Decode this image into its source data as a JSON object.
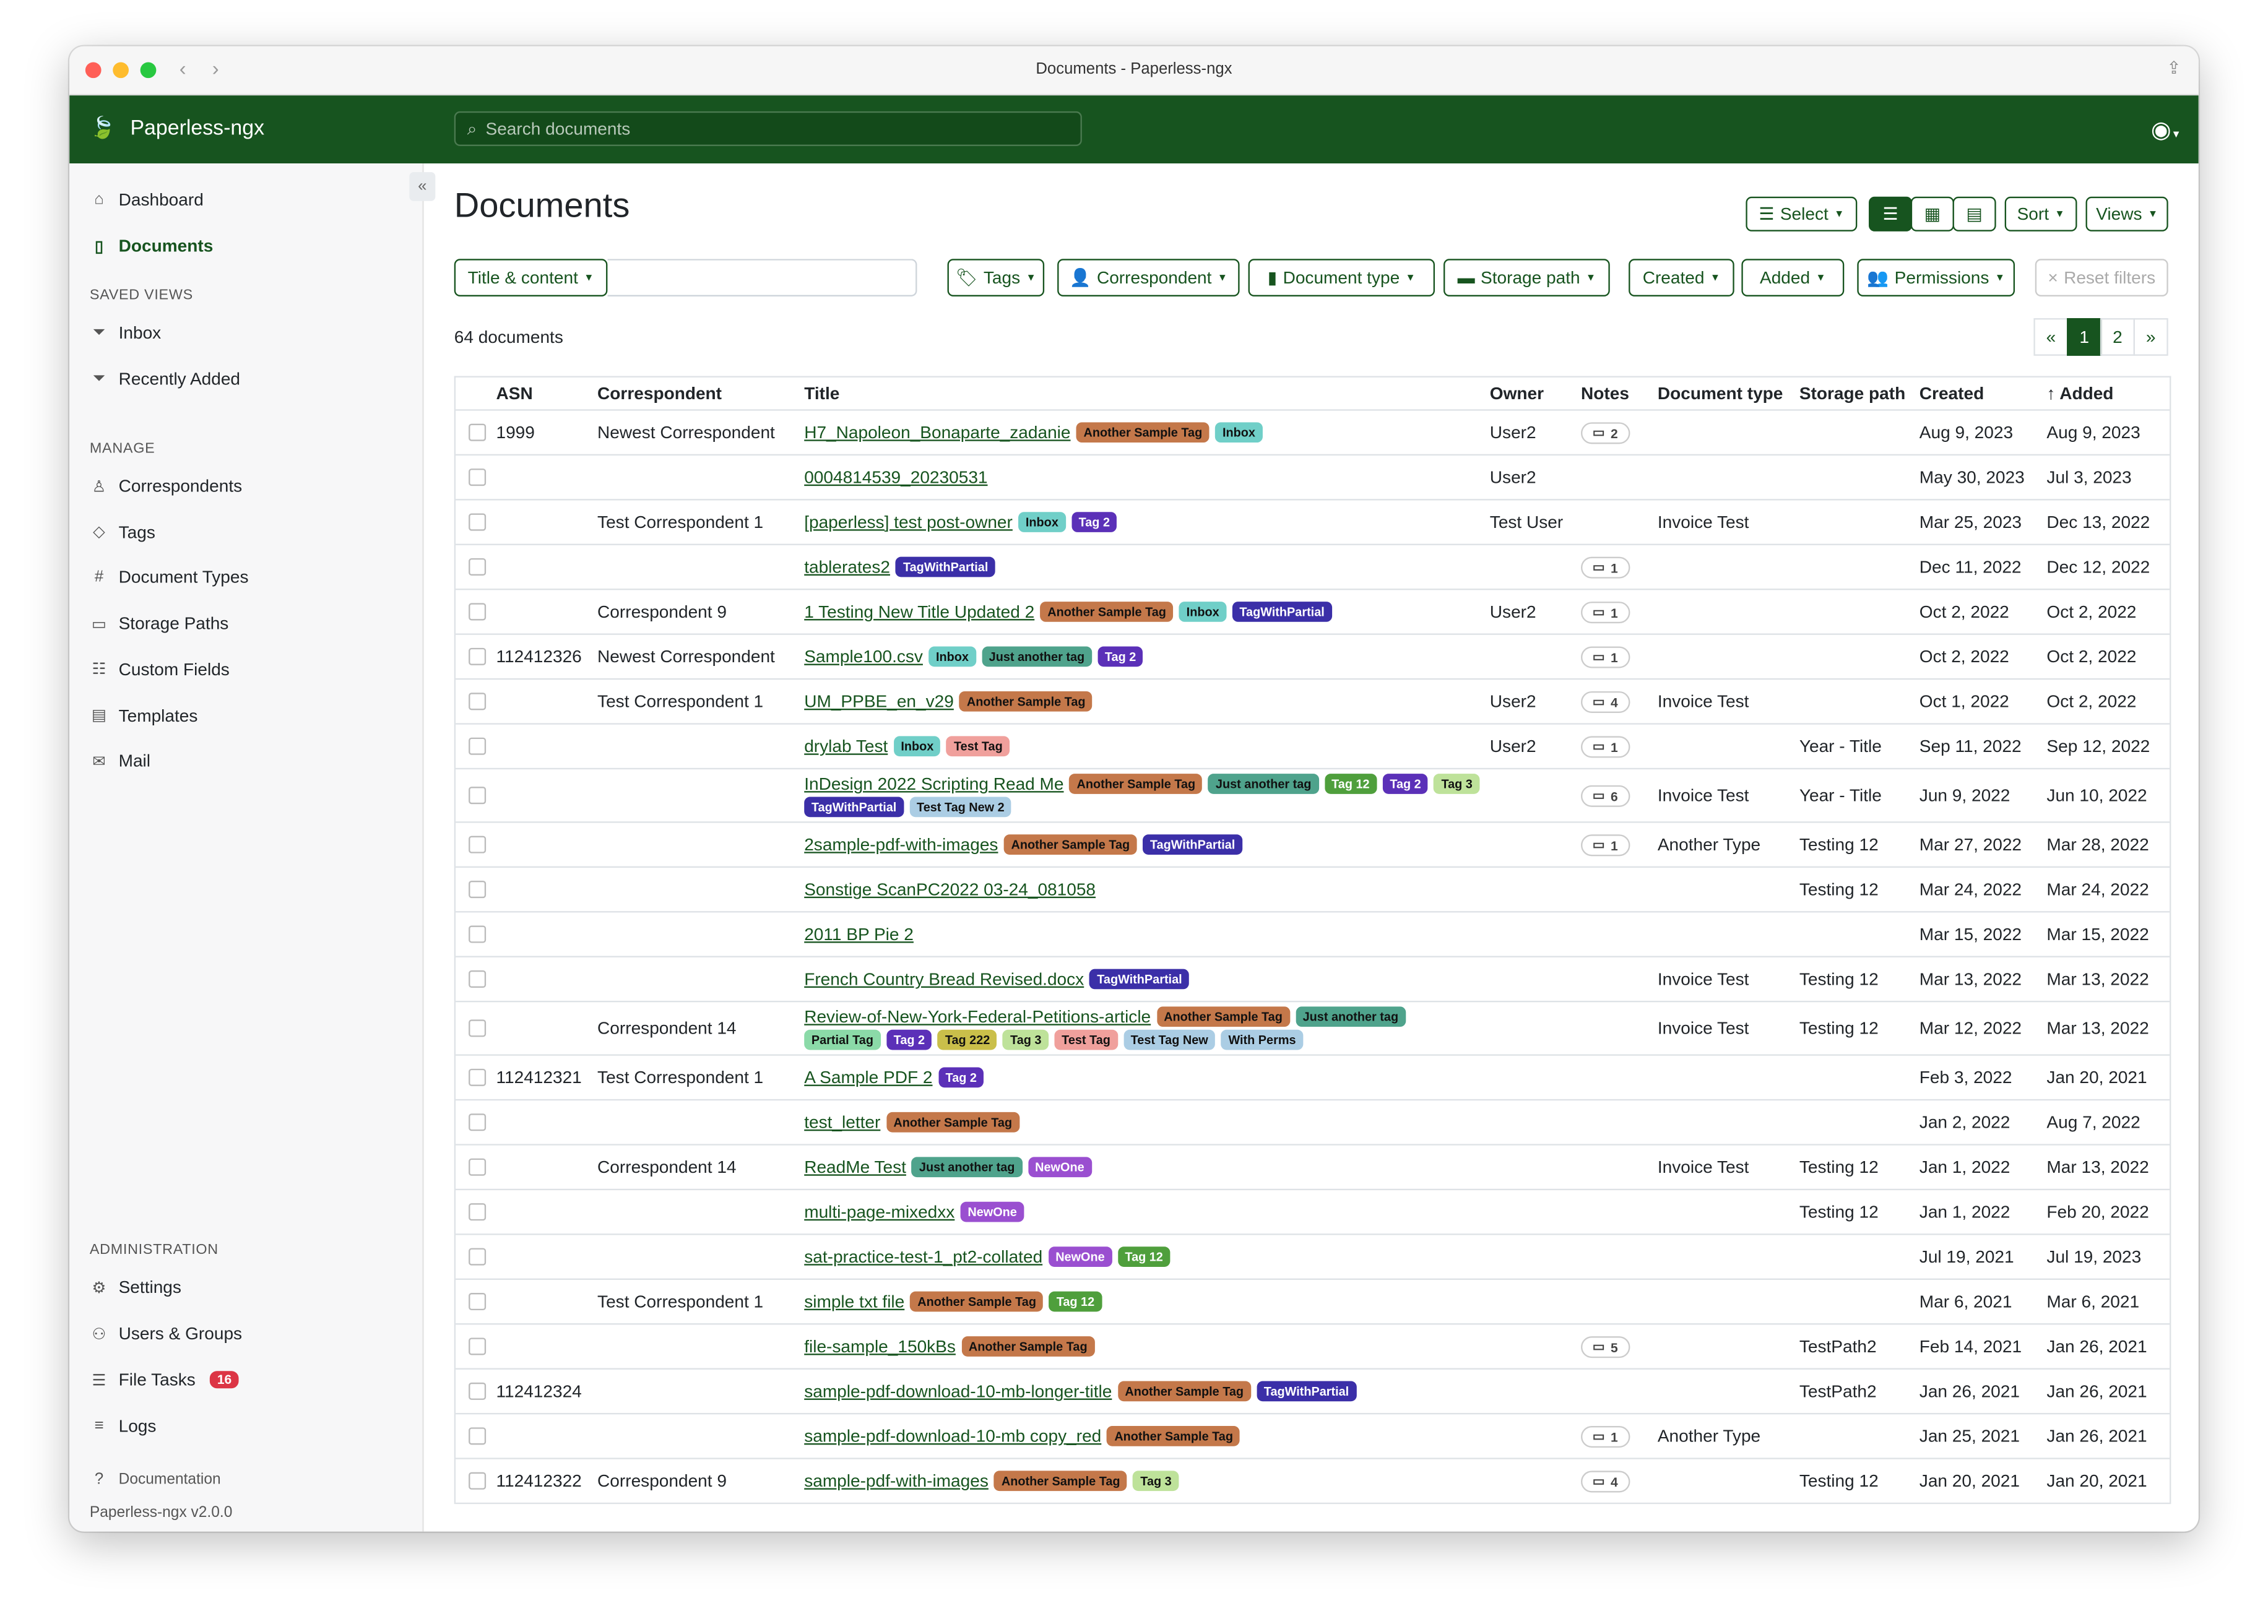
{
  "window": {
    "title": "Documents - Paperless-ngx"
  },
  "navbar": {
    "brand": "Paperless-ngx",
    "search_placeholder": "Search documents"
  },
  "sidebar": {
    "items_top": [
      {
        "label": "Dashboard",
        "icon": "house-icon"
      },
      {
        "label": "Documents",
        "icon": "file-icon",
        "active": true
      }
    ],
    "saved_views_heading": "SAVED VIEWS",
    "saved_views": [
      {
        "label": "Inbox",
        "icon": "funnel-icon"
      },
      {
        "label": "Recently Added",
        "icon": "funnel-icon"
      }
    ],
    "manage_heading": "MANAGE",
    "manage": [
      {
        "label": "Correspondents",
        "icon": "person-icon"
      },
      {
        "label": "Tags",
        "icon": "tag-icon"
      },
      {
        "label": "Document Types",
        "icon": "hash-icon"
      },
      {
        "label": "Storage Paths",
        "icon": "folder-icon"
      },
      {
        "label": "Custom Fields",
        "icon": "ui-radios-icon"
      },
      {
        "label": "Templates",
        "icon": "file-text-icon"
      },
      {
        "label": "Mail",
        "icon": "envelope-icon"
      }
    ],
    "admin_heading": "ADMINISTRATION",
    "admin": [
      {
        "label": "Settings",
        "icon": "gear-icon"
      },
      {
        "label": "Users & Groups",
        "icon": "people-icon"
      },
      {
        "label": "File Tasks",
        "icon": "list-icon",
        "badge": "16"
      },
      {
        "label": "Logs",
        "icon": "text-lines-icon"
      }
    ],
    "documentation": "Documentation",
    "version": "Paperless-ngx v2.0.0"
  },
  "main": {
    "title": "Documents",
    "select_label": "Select",
    "sort_label": "Sort",
    "views_label": "Views",
    "filters": {
      "title_content": "Title & content",
      "tags": "Tags",
      "correspondent": "Correspondent",
      "document_type": "Document type",
      "storage_path": "Storage path",
      "created": "Created",
      "added": "Added",
      "permissions": "Permissions",
      "reset": "Reset filters"
    },
    "count": "64 documents",
    "pager": [
      "«",
      "1",
      "2",
      "»"
    ],
    "columns": [
      "ASN",
      "Correspondent",
      "Title",
      "Owner",
      "Notes",
      "Document type",
      "Storage path",
      "Created",
      "Added"
    ]
  },
  "tag_colors": {
    "Another Sample Tag": [
      "#c4784a",
      "#111"
    ],
    "Inbox": [
      "#70cfc8",
      "#111"
    ],
    "Tag 2": [
      "#5b30b8",
      "#fff"
    ],
    "TagWithPartial": [
      "#3b2fa8",
      "#fff"
    ],
    "Just another tag": [
      "#4fa38c",
      "#111"
    ],
    "Tag 12": [
      "#4f9f3c",
      "#fff"
    ],
    "Tag 3": [
      "#bee29a",
      "#111"
    ],
    "Test Tag": [
      "#f0a09c",
      "#111"
    ],
    "Test Tag New 2": [
      "#abcde4",
      "#111"
    ],
    "Test Tag New": [
      "#abcde4",
      "#111"
    ],
    "With Perms": [
      "#abcde4",
      "#111"
    ],
    "Partial Tag": [
      "#8bdaa8",
      "#111"
    ],
    "Tag 222": [
      "#cabf4a",
      "#111"
    ],
    "NewOne": [
      "#9a4fd0",
      "#fff"
    ]
  },
  "rows": [
    {
      "asn": "1999",
      "corr": "Newest Correspondent",
      "title": "H7_Napoleon_Bonaparte_zadanie",
      "tags": [
        "Another Sample Tag",
        "Inbox"
      ],
      "owner": "User2",
      "notes": "2",
      "type": "",
      "path": "",
      "created": "Aug 9, 2023",
      "added": "Aug 9, 2023"
    },
    {
      "asn": "",
      "corr": "",
      "title": "0004814539_20230531",
      "tags": [],
      "owner": "User2",
      "notes": "",
      "type": "",
      "path": "",
      "created": "May 30, 2023",
      "added": "Jul 3, 2023"
    },
    {
      "asn": "",
      "corr": "Test Correspondent 1",
      "title": "[paperless] test post-owner",
      "tags": [
        "Inbox",
        "Tag 2"
      ],
      "owner": "Test User",
      "notes": "",
      "type": "Invoice Test",
      "path": "",
      "created": "Mar 25, 2023",
      "added": "Dec 13, 2022"
    },
    {
      "asn": "",
      "corr": "",
      "title": "tablerates2",
      "tags": [
        "TagWithPartial"
      ],
      "owner": "",
      "notes": "1",
      "type": "",
      "path": "",
      "created": "Dec 11, 2022",
      "added": "Dec 12, 2022"
    },
    {
      "asn": "",
      "corr": "Correspondent 9",
      "title": "1 Testing New Title Updated 2",
      "tags": [
        "Another Sample Tag",
        "Inbox",
        "TagWithPartial"
      ],
      "owner": "User2",
      "notes": "1",
      "type": "",
      "path": "",
      "created": "Oct 2, 2022",
      "added": "Oct 2, 2022"
    },
    {
      "asn": "112412326",
      "corr": "Newest Correspondent",
      "title": "Sample100.csv",
      "tags": [
        "Inbox",
        "Just another tag",
        "Tag 2"
      ],
      "owner": "",
      "notes": "1",
      "type": "",
      "path": "",
      "created": "Oct 2, 2022",
      "added": "Oct 2, 2022"
    },
    {
      "asn": "",
      "corr": "Test Correspondent 1",
      "title": "UM_PPBE_en_v29",
      "tags": [
        "Another Sample Tag"
      ],
      "owner": "User2",
      "notes": "4",
      "type": "Invoice Test",
      "path": "",
      "created": "Oct 1, 2022",
      "added": "Oct 2, 2022"
    },
    {
      "asn": "",
      "corr": "",
      "title": "drylab Test",
      "tags": [
        "Inbox",
        "Test Tag"
      ],
      "owner": "User2",
      "notes": "1",
      "type": "",
      "path": "Year - Title",
      "created": "Sep 11, 2022",
      "added": "Sep 12, 2022"
    },
    {
      "asn": "",
      "corr": "",
      "title": "InDesign 2022 Scripting Read Me",
      "tags": [
        "Another Sample Tag",
        "Just another tag",
        "Tag 12",
        "Tag 2",
        "Tag 3",
        "TagWithPartial",
        "Test Tag New 2"
      ],
      "owner": "",
      "notes": "6",
      "type": "Invoice Test",
      "path": "Year - Title",
      "created": "Jun 9, 2022",
      "added": "Jun 10, 2022"
    },
    {
      "asn": "",
      "corr": "",
      "title": "2sample-pdf-with-images",
      "tags": [
        "Another Sample Tag",
        "TagWithPartial"
      ],
      "owner": "",
      "notes": "1",
      "type": "Another Type",
      "path": "Testing 12",
      "created": "Mar 27, 2022",
      "added": "Mar 28, 2022"
    },
    {
      "asn": "",
      "corr": "",
      "title": "Sonstige ScanPC2022 03-24_081058",
      "tags": [],
      "owner": "",
      "notes": "",
      "type": "",
      "path": "Testing 12",
      "created": "Mar 24, 2022",
      "added": "Mar 24, 2022"
    },
    {
      "asn": "",
      "corr": "",
      "title": "2011 BP Pie 2",
      "tags": [],
      "owner": "",
      "notes": "",
      "type": "",
      "path": "",
      "created": "Mar 15, 2022",
      "added": "Mar 15, 2022"
    },
    {
      "asn": "",
      "corr": "",
      "title": "French Country Bread Revised.docx",
      "tags": [
        "TagWithPartial"
      ],
      "owner": "",
      "notes": "",
      "type": "Invoice Test",
      "path": "Testing 12",
      "created": "Mar 13, 2022",
      "added": "Mar 13, 2022"
    },
    {
      "asn": "",
      "corr": "Correspondent 14",
      "title": "Review-of-New-York-Federal-Petitions-article",
      "tags": [
        "Another Sample Tag",
        "Just another tag",
        "Partial Tag",
        "Tag 2",
        "Tag 222",
        "Tag 3",
        "Test Tag",
        "Test Tag New",
        "With Perms"
      ],
      "owner": "",
      "notes": "",
      "type": "Invoice Test",
      "path": "Testing 12",
      "created": "Mar 12, 2022",
      "added": "Mar 13, 2022"
    },
    {
      "asn": "112412321",
      "corr": "Test Correspondent 1",
      "title": "A Sample PDF 2",
      "tags": [
        "Tag 2"
      ],
      "owner": "",
      "notes": "",
      "type": "",
      "path": "",
      "created": "Feb 3, 2022",
      "added": "Jan 20, 2021"
    },
    {
      "asn": "",
      "corr": "",
      "title": "test_letter",
      "tags": [
        "Another Sample Tag"
      ],
      "owner": "",
      "notes": "",
      "type": "",
      "path": "",
      "created": "Jan 2, 2022",
      "added": "Aug 7, 2022"
    },
    {
      "asn": "",
      "corr": "Correspondent 14",
      "title": "ReadMe Test",
      "tags": [
        "Just another tag",
        "NewOne"
      ],
      "owner": "",
      "notes": "",
      "type": "Invoice Test",
      "path": "Testing 12",
      "created": "Jan 1, 2022",
      "added": "Mar 13, 2022"
    },
    {
      "asn": "",
      "corr": "",
      "title": "multi-page-mixedxx",
      "tags": [
        "NewOne"
      ],
      "owner": "",
      "notes": "",
      "type": "",
      "path": "Testing 12",
      "created": "Jan 1, 2022",
      "added": "Feb 20, 2022"
    },
    {
      "asn": "",
      "corr": "",
      "title": "sat-practice-test-1_pt2-collated",
      "tags": [
        "NewOne",
        "Tag 12"
      ],
      "owner": "",
      "notes": "",
      "type": "",
      "path": "",
      "created": "Jul 19, 2021",
      "added": "Jul 19, 2023"
    },
    {
      "asn": "",
      "corr": "Test Correspondent 1",
      "title": "simple txt file",
      "tags": [
        "Another Sample Tag",
        "Tag 12"
      ],
      "owner": "",
      "notes": "",
      "type": "",
      "path": "",
      "created": "Mar 6, 2021",
      "added": "Mar 6, 2021"
    },
    {
      "asn": "",
      "corr": "",
      "title": "file-sample_150kBs",
      "tags": [
        "Another Sample Tag"
      ],
      "owner": "",
      "notes": "5",
      "type": "",
      "path": "TestPath2",
      "created": "Feb 14, 2021",
      "added": "Jan 26, 2021"
    },
    {
      "asn": "112412324",
      "corr": "",
      "title": "sample-pdf-download-10-mb-longer-title",
      "tags": [
        "Another Sample Tag",
        "TagWithPartial"
      ],
      "owner": "",
      "notes": "",
      "type": "",
      "path": "TestPath2",
      "created": "Jan 26, 2021",
      "added": "Jan 26, 2021"
    },
    {
      "asn": "",
      "corr": "",
      "title": "sample-pdf-download-10-mb copy_red",
      "tags": [
        "Another Sample Tag"
      ],
      "owner": "",
      "notes": "1",
      "type": "Another Type",
      "path": "",
      "created": "Jan 25, 2021",
      "added": "Jan 26, 2021"
    },
    {
      "asn": "112412322",
      "corr": "Correspondent 9",
      "title": "sample-pdf-with-images",
      "tags": [
        "Another Sample Tag",
        "Tag 3"
      ],
      "owner": "",
      "notes": "4",
      "type": "",
      "path": "Testing 12",
      "created": "Jan 20, 2021",
      "added": "Jan 20, 2021"
    }
  ]
}
